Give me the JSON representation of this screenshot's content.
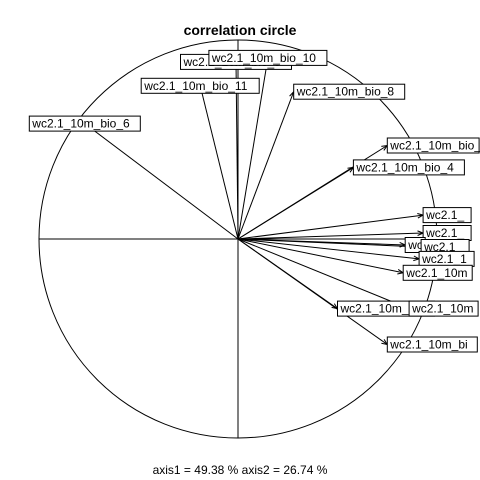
{
  "chart_data": {
    "type": "scatter",
    "title": "correlation circle",
    "axis_labels": {
      "axis1": "axis1 = ",
      "axis1_value": "49.38 %",
      "axis2": "axis2 = ",
      "axis2_value": "26.74 %"
    },
    "xlim": [
      -1,
      1
    ],
    "ylim": [
      -1,
      1
    ],
    "grid": false,
    "vectors": [
      {
        "label": "wc2.1_10m_bio_6",
        "x": -0.77,
        "y": 0.58
      },
      {
        "label": "wc2.1_10m_bio_11",
        "x": -0.19,
        "y": 0.77
      },
      {
        "label": "wc2.1_10m_bio_9",
        "x": -0.01,
        "y": 0.89
      },
      {
        "label": "wc2.1_10m_bio_10",
        "x": 0.15,
        "y": 0.91
      },
      {
        "label": "wc2.1_10m_bio_8",
        "x": 0.28,
        "y": 0.74
      },
      {
        "label": "wc2.1_10m_bio_",
        "x": 0.75,
        "y": 0.47
      },
      {
        "label": "wc2.1_10m_bio_4",
        "x": 0.58,
        "y": 0.36
      },
      {
        "label": "wc2.1_",
        "x": 0.93,
        "y": 0.12
      },
      {
        "label": "wc2.1_",
        "x": 0.93,
        "y": 0.03
      },
      {
        "label": "wc",
        "x": 0.84,
        "y": -0.03
      },
      {
        "label": "wc2.1_",
        "x": 0.92,
        "y": -0.04
      },
      {
        "label": "wc2.1_1",
        "x": 0.91,
        "y": -0.1
      },
      {
        "label": "wc2.1_10m",
        "x": 0.83,
        "y": -0.17
      },
      {
        "label": "wc2.1_10m_bio",
        "x": 0.5,
        "y": -0.35
      },
      {
        "label": "wc2.1_10m",
        "x": 0.86,
        "y": -0.35
      },
      {
        "label": "wc2.1_10m_bi",
        "x": 0.75,
        "y": -0.53
      }
    ]
  }
}
